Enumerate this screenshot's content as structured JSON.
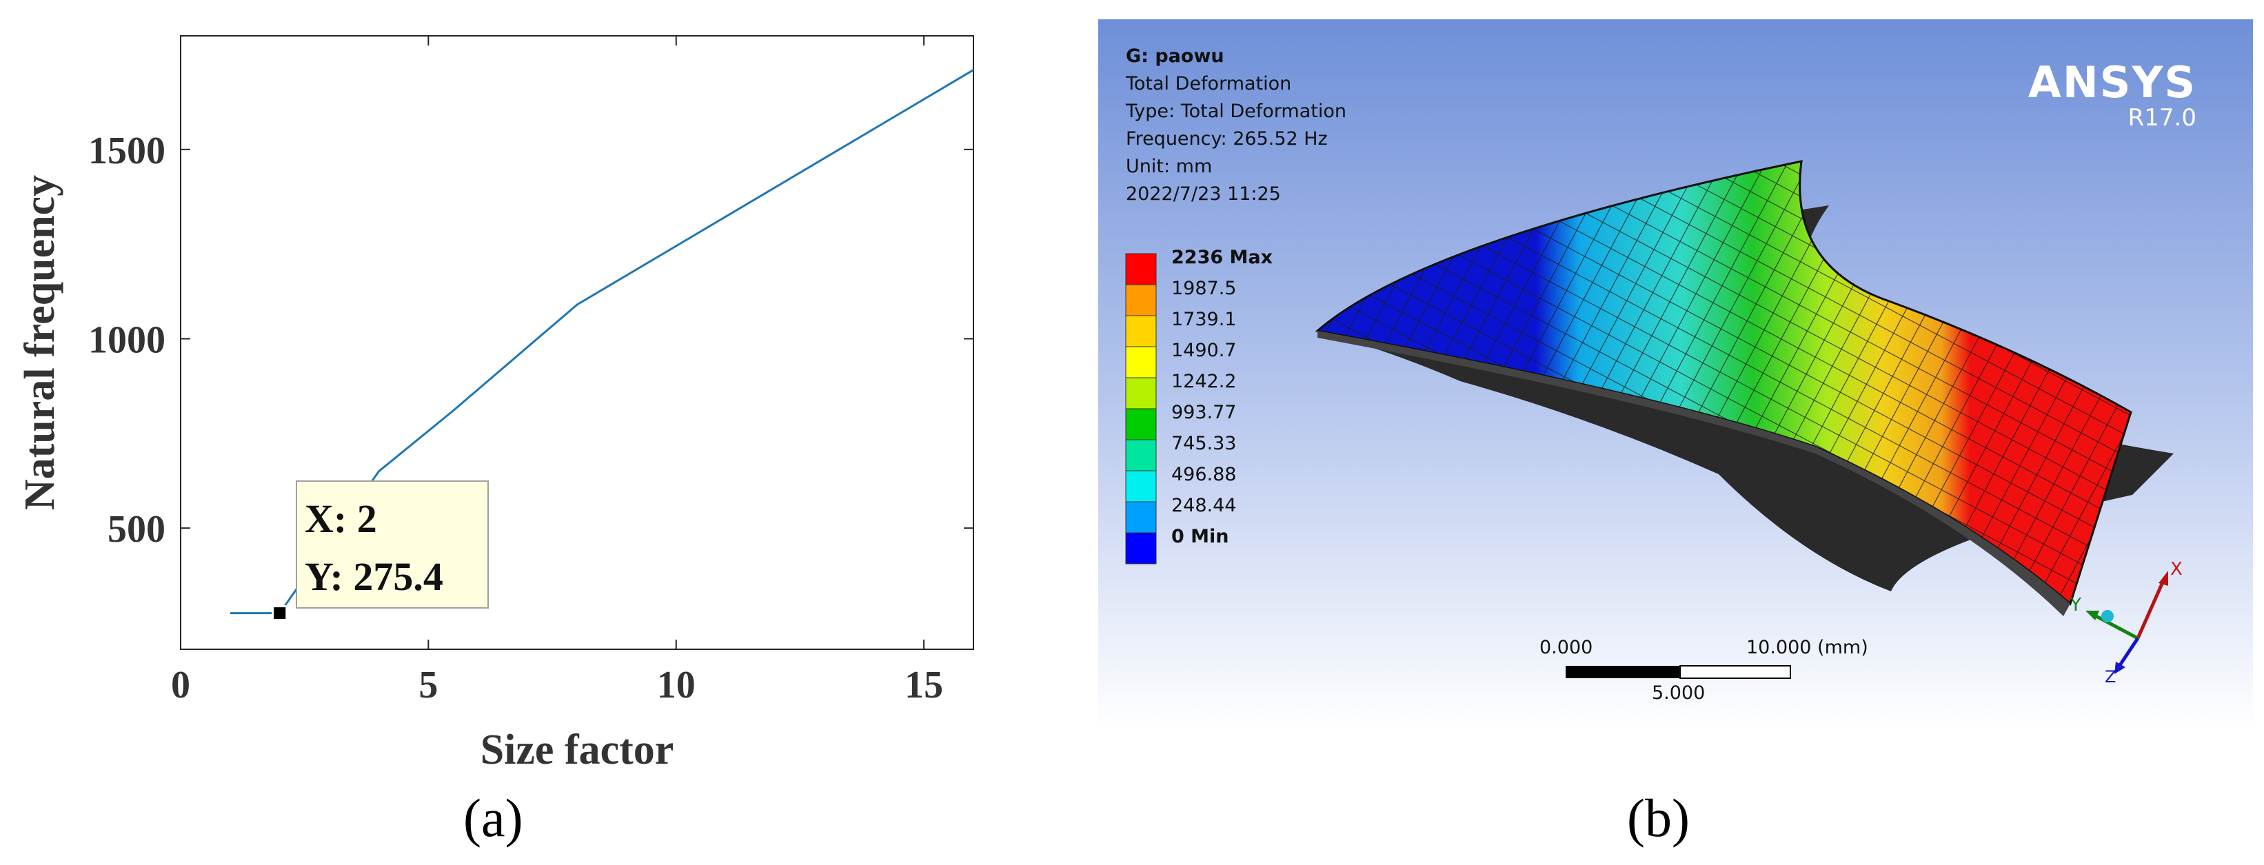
{
  "panels": {
    "a": "(a)",
    "b": "(b)"
  },
  "chart_data": {
    "type": "line",
    "xlabel": "Size factor",
    "ylabel": "Natural frequency",
    "xlim": [
      0,
      16
    ],
    "ylim": [
      180,
      1800
    ],
    "xticks": [
      0,
      5,
      10,
      15
    ],
    "xtick_labels": [
      "0",
      "5",
      "10",
      "15"
    ],
    "yticks": [
      500,
      1000,
      1500
    ],
    "ytick_labels": [
      "500",
      "1000",
      "1500"
    ],
    "grid": false,
    "series": [
      {
        "color": "#1f77b4",
        "x": [
          1,
          2,
          4,
          5.5,
          8,
          16
        ],
        "y": [
          275.4,
          275.4,
          650,
          810,
          1090,
          1710
        ]
      }
    ],
    "datatip": {
      "x": 2,
      "y": 275.4,
      "x_text": "X: 2",
      "y_text": "Y: 275.4"
    }
  },
  "ansys": {
    "info": [
      "G: paowu",
      "Total Deformation",
      "Type: Total Deformation",
      "Frequency: 265.52 Hz",
      "Unit: mm",
      "2022/7/23 11:25"
    ],
    "logo": "ANSYS",
    "version": "R17.0",
    "legend": {
      "labels": [
        "2236 Max",
        "1987.5",
        "1739.1",
        "1490.7",
        "1242.2",
        "993.77",
        "745.33",
        "496.88",
        "248.44",
        "0 Min"
      ],
      "colors": [
        "#ff0000",
        "#ff9a00",
        "#ffd500",
        "#ffff00",
        "#b4f000",
        "#00cc00",
        "#00e6a0",
        "#00f0f0",
        "#00a0ff",
        "#0000ff"
      ]
    },
    "scale_bar": {
      "left": "0.000",
      "right": "10.000 (mm)",
      "mid": "5.000"
    },
    "triad": {
      "x": "X",
      "y": "Y",
      "z": "Z"
    }
  }
}
